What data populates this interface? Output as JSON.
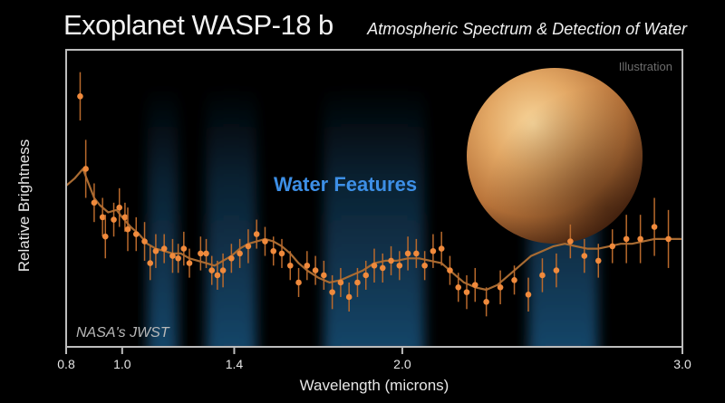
{
  "header": {
    "title": "Exoplanet WASP-18 b",
    "subtitle": "Atmospheric Spectrum & Detection of Water"
  },
  "annotations": {
    "illustration": "Illustration",
    "water_features": "Water Features",
    "credit": "NASA's JWST"
  },
  "colors": {
    "data_points": "#f08a3c",
    "model_line": "#a86b32",
    "water_band": "#1f5f8f",
    "water_text": "#3d8fe6",
    "frame": "#bdbdbd"
  },
  "chart_data": {
    "type": "scatter",
    "xlabel": "Wavelength (microns)",
    "ylabel": "Relative Brightness",
    "xlim": [
      0.8,
      3.0
    ],
    "ylim": [
      0,
      1
    ],
    "xticks": [
      0.8,
      1.0,
      1.4,
      2.0,
      3.0
    ],
    "xticklabels": [
      "0.8",
      "1.0",
      "1.4",
      "2.0",
      "3.0"
    ],
    "grid": false,
    "water_bands": [
      [
        1.09,
        1.2
      ],
      [
        1.3,
        1.48
      ],
      [
        1.72,
        2.08
      ],
      [
        2.45,
        2.7
      ]
    ],
    "series": [
      {
        "type": "points",
        "x": [
          0.85,
          0.87,
          0.9,
          0.93,
          0.94,
          0.97,
          0.99,
          1.01,
          1.02,
          1.05,
          1.08,
          1.1,
          1.12,
          1.15,
          1.18,
          1.2,
          1.22,
          1.24,
          1.28,
          1.3,
          1.32,
          1.34,
          1.36,
          1.39,
          1.42,
          1.45,
          1.48,
          1.51,
          1.54,
          1.57,
          1.6,
          1.63,
          1.66,
          1.69,
          1.72,
          1.75,
          1.78,
          1.81,
          1.84,
          1.87,
          1.9,
          1.93,
          1.96,
          1.99,
          2.02,
          2.05,
          2.08,
          2.11,
          2.14,
          2.17,
          2.2,
          2.23,
          2.26,
          2.3,
          2.35,
          2.4,
          2.45,
          2.5,
          2.55,
          2.6,
          2.65,
          2.7,
          2.75,
          2.8,
          2.85,
          2.9,
          2.95
        ],
        "y": [
          0.92,
          0.62,
          0.48,
          0.42,
          0.34,
          0.41,
          0.46,
          0.42,
          0.37,
          0.35,
          0.32,
          0.23,
          0.28,
          0.29,
          0.26,
          0.25,
          0.29,
          0.23,
          0.27,
          0.27,
          0.2,
          0.18,
          0.2,
          0.25,
          0.27,
          0.3,
          0.35,
          0.32,
          0.28,
          0.27,
          0.22,
          0.15,
          0.22,
          0.2,
          0.18,
          0.11,
          0.15,
          0.09,
          0.15,
          0.18,
          0.22,
          0.21,
          0.24,
          0.22,
          0.27,
          0.27,
          0.22,
          0.28,
          0.29,
          0.2,
          0.13,
          0.11,
          0.14,
          0.07,
          0.13,
          0.16,
          0.1,
          0.18,
          0.2,
          0.32,
          0.26,
          0.24,
          0.3,
          0.33,
          0.33,
          0.38,
          0.33
        ],
        "err": [
          0.1,
          0.12,
          0.08,
          0.08,
          0.09,
          0.07,
          0.08,
          0.06,
          0.09,
          0.07,
          0.08,
          0.07,
          0.07,
          0.06,
          0.07,
          0.06,
          0.07,
          0.06,
          0.07,
          0.06,
          0.06,
          0.06,
          0.07,
          0.06,
          0.06,
          0.07,
          0.06,
          0.06,
          0.06,
          0.06,
          0.06,
          0.06,
          0.06,
          0.06,
          0.06,
          0.07,
          0.06,
          0.06,
          0.06,
          0.06,
          0.07,
          0.06,
          0.06,
          0.06,
          0.07,
          0.06,
          0.06,
          0.07,
          0.07,
          0.06,
          0.06,
          0.07,
          0.07,
          0.06,
          0.07,
          0.06,
          0.07,
          0.07,
          0.07,
          0.07,
          0.07,
          0.07,
          0.07,
          0.1,
          0.1,
          0.12,
          0.12
        ]
      },
      {
        "type": "model_line",
        "x": [
          0.8,
          0.83,
          0.86,
          0.88,
          0.9,
          0.92,
          0.95,
          0.98,
          1.0,
          1.03,
          1.06,
          1.09,
          1.12,
          1.15,
          1.18,
          1.21,
          1.24,
          1.27,
          1.3,
          1.33,
          1.36,
          1.39,
          1.42,
          1.45,
          1.48,
          1.51,
          1.54,
          1.57,
          1.6,
          1.63,
          1.66,
          1.7,
          1.74,
          1.78,
          1.82,
          1.86,
          1.9,
          1.94,
          1.98,
          2.02,
          2.06,
          2.1,
          2.14,
          2.18,
          2.22,
          2.26,
          2.3,
          2.34,
          2.38,
          2.42,
          2.46,
          2.5,
          2.54,
          2.58,
          2.62,
          2.66,
          2.7,
          2.74,
          2.78,
          2.82,
          2.86,
          2.9,
          2.95,
          3.0
        ],
        "y": [
          0.55,
          0.58,
          0.62,
          0.56,
          0.5,
          0.47,
          0.44,
          0.45,
          0.42,
          0.38,
          0.35,
          0.31,
          0.29,
          0.28,
          0.27,
          0.27,
          0.25,
          0.24,
          0.23,
          0.22,
          0.24,
          0.26,
          0.29,
          0.31,
          0.32,
          0.33,
          0.32,
          0.3,
          0.27,
          0.23,
          0.2,
          0.17,
          0.15,
          0.16,
          0.18,
          0.2,
          0.23,
          0.24,
          0.24,
          0.25,
          0.25,
          0.24,
          0.23,
          0.19,
          0.15,
          0.13,
          0.12,
          0.14,
          0.18,
          0.22,
          0.26,
          0.28,
          0.3,
          0.31,
          0.3,
          0.29,
          0.29,
          0.3,
          0.31,
          0.31,
          0.32,
          0.33,
          0.33,
          0.33
        ]
      }
    ]
  }
}
